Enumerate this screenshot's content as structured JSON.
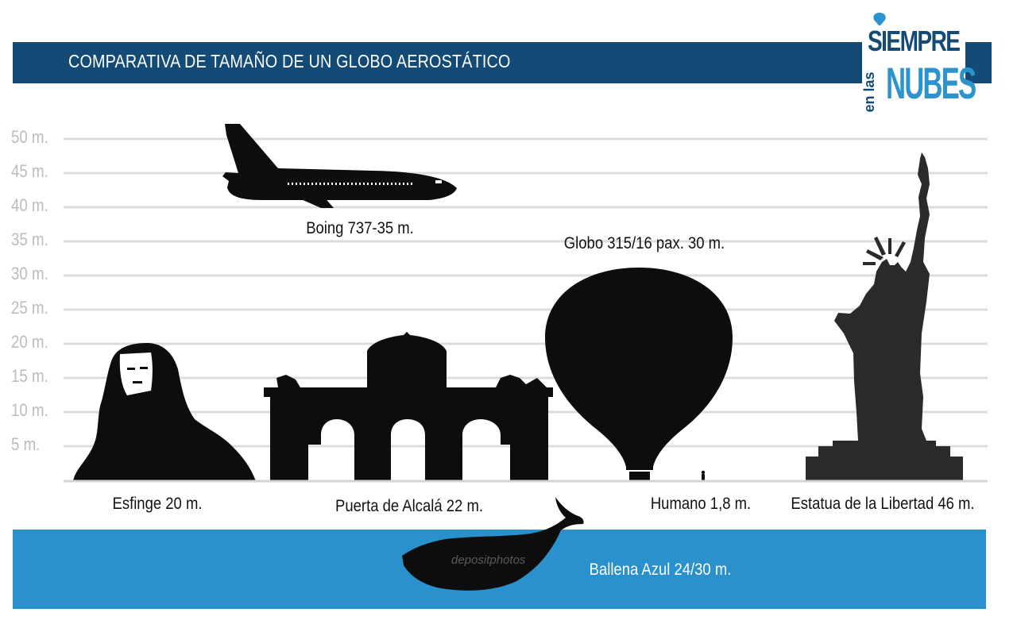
{
  "header": {
    "title": "COMPARATIVA DE TAMAÑO DE UN GLOBO AEROSTÁTICO"
  },
  "logo": {
    "top": "SIEMPRE",
    "side": "en las",
    "bottom": "NUBES"
  },
  "colors": {
    "header_bar": "#144a76",
    "band": "#2a91cc",
    "logo_accent": "#2b94cf",
    "grid": "#dcdcdc",
    "silhouette": "#0d0d0d"
  },
  "chart_data": {
    "type": "diagram",
    "y_ticks": [
      "50 m.",
      "45 m.",
      "40 m.",
      "35 m.",
      "30 m.",
      "25 m.",
      "20 m.",
      "15 m.",
      "10 m.",
      "5 m."
    ],
    "y_values": [
      50,
      45,
      40,
      35,
      30,
      25,
      20,
      15,
      10,
      5
    ],
    "items": [
      {
        "key": "boeing",
        "label": "Boing 737-35 m.",
        "length_m": 35,
        "icon": "airplane-icon"
      },
      {
        "key": "globo",
        "label": "Globo 315/16 pax. 30 m.",
        "height_m": 30,
        "icon": "hot-air-balloon-icon"
      },
      {
        "key": "esfinge",
        "label": "Esfinge 20 m.",
        "height_m": 20,
        "icon": "sphinx-icon"
      },
      {
        "key": "puerta",
        "label": "Puerta de Alcalá 22 m.",
        "height_m": 22,
        "icon": "gate-icon"
      },
      {
        "key": "humano",
        "label": "Humano 1,8 m.",
        "height_m": 1.8,
        "icon": "human-icon"
      },
      {
        "key": "estatua",
        "label": "Estatua de la Libertad 46 m.",
        "height_m": 46,
        "icon": "statue-icon"
      },
      {
        "key": "ballena",
        "label": "Ballena Azul 24/30 m.",
        "length_m": [
          24,
          30
        ],
        "icon": "whale-icon"
      }
    ]
  },
  "watermark": "depositphotos"
}
